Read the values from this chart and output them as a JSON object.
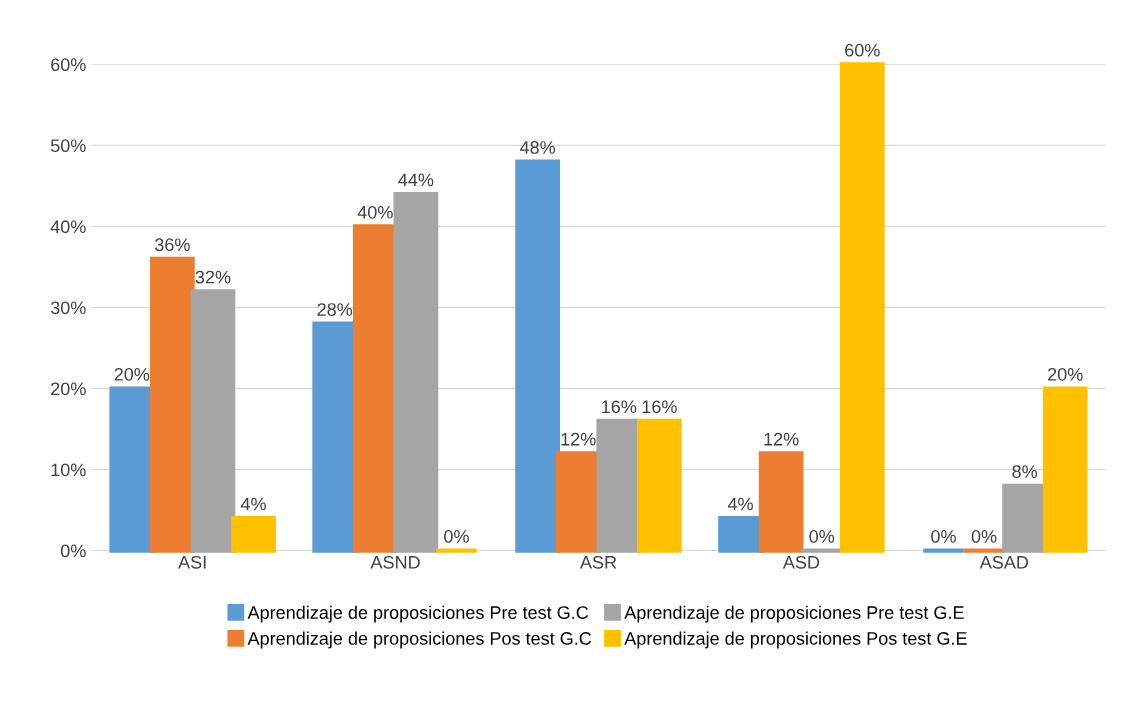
{
  "chart_data": {
    "type": "bar",
    "categories": [
      "ASI",
      "ASND",
      "ASR",
      "ASD",
      "ASAD"
    ],
    "series": [
      {
        "name": "Aprendizaje de proposiciones Pre test G.C",
        "color": "#5b9bd5",
        "values": [
          20,
          28,
          48,
          4,
          0
        ],
        "value_labels": [
          "20%",
          "28%",
          "48%",
          "4%",
          "0%"
        ]
      },
      {
        "name": "Aprendizaje de proposiciones Pos test G.C",
        "color": "#ed7d31",
        "values": [
          36,
          40,
          12,
          12,
          0
        ],
        "value_labels": [
          "36%",
          "40%",
          "12%",
          "12%",
          "0%"
        ]
      },
      {
        "name": "Aprendizaje de proposiciones Pre test G.E",
        "color": "#a5a5a5",
        "values": [
          32,
          44,
          16,
          0,
          8
        ],
        "value_labels": [
          "32%",
          "44%",
          "16%",
          "0%",
          "8%"
        ]
      },
      {
        "name": "Aprendizaje de proposiciones Pos test G.E",
        "color": "#ffc000",
        "values": [
          4,
          0,
          16,
          60,
          20
        ],
        "value_labels": [
          "4%",
          "0%",
          "16%",
          "60%",
          "20%"
        ]
      }
    ],
    "ylim": [
      0,
      60
    ],
    "yticks": [
      {
        "value": 0,
        "label": "0%"
      },
      {
        "value": 10,
        "label": "10%"
      },
      {
        "value": 20,
        "label": "20%"
      },
      {
        "value": 30,
        "label": "30%"
      },
      {
        "value": 40,
        "label": "40%"
      },
      {
        "value": 50,
        "label": "50%"
      },
      {
        "value": 60,
        "label": "60%"
      }
    ],
    "grid": "y",
    "legend": "bottom"
  }
}
